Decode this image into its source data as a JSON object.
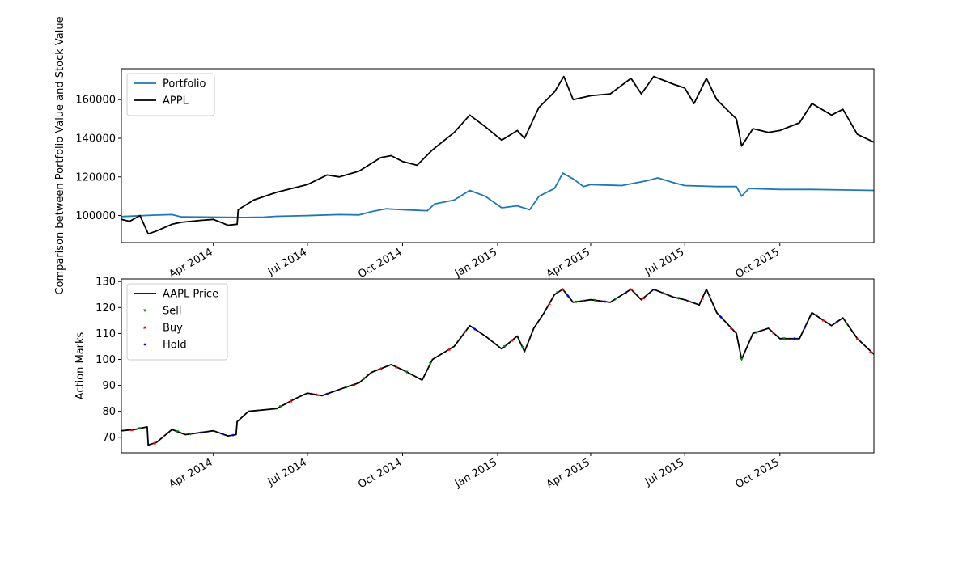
{
  "chart_data": [
    {
      "type": "line",
      "title": "",
      "xlabel": "",
      "ylabel": "Comparison between Portfolio Value and Stock Value",
      "x_range": [
        "2014-01-02",
        "2015-12-31"
      ],
      "ylim": [
        86000,
        176000
      ],
      "y_ticks": [
        100000,
        120000,
        140000,
        160000
      ],
      "x_ticks": [
        {
          "date": "2014-04-01",
          "label": "Apr 2014"
        },
        {
          "date": "2014-07-01",
          "label": "Jul 2014"
        },
        {
          "date": "2014-10-01",
          "label": "Oct 2014"
        },
        {
          "date": "2015-01-01",
          "label": "Jan 2015"
        },
        {
          "date": "2015-04-01",
          "label": "Apr 2015"
        },
        {
          "date": "2015-07-01",
          "label": "Jul 2015"
        },
        {
          "date": "2015-10-01",
          "label": "Oct 2015"
        }
      ],
      "legend": "upper-left",
      "grid": false,
      "series": [
        {
          "name": "Portfolio",
          "color": "#1f77b4",
          "points": [
            [
              "2014-01-02",
              99500
            ],
            [
              "2014-02-01",
              100200
            ],
            [
              "2014-02-20",
              100500
            ],
            [
              "2014-03-01",
              99300
            ],
            [
              "2014-04-01",
              99200
            ],
            [
              "2014-05-01",
              99000
            ],
            [
              "2014-05-20",
              99200
            ],
            [
              "2014-06-01",
              99600
            ],
            [
              "2014-07-01",
              100000
            ],
            [
              "2014-08-01",
              100500
            ],
            [
              "2014-08-20",
              100300
            ],
            [
              "2014-09-01",
              102000
            ],
            [
              "2014-09-15",
              103500
            ],
            [
              "2014-10-01",
              103000
            ],
            [
              "2014-10-25",
              102500
            ],
            [
              "2014-11-01",
              106000
            ],
            [
              "2014-11-20",
              108000
            ],
            [
              "2014-12-05",
              113000
            ],
            [
              "2014-12-20",
              110000
            ],
            [
              "2015-01-05",
              104000
            ],
            [
              "2015-01-20",
              105000
            ],
            [
              "2015-02-01",
              103000
            ],
            [
              "2015-02-10",
              110000
            ],
            [
              "2015-02-25",
              114000
            ],
            [
              "2015-03-05",
              122000
            ],
            [
              "2015-03-15",
              119000
            ],
            [
              "2015-03-25",
              115000
            ],
            [
              "2015-04-01",
              116000
            ],
            [
              "2015-05-01",
              115500
            ],
            [
              "2015-05-25",
              118000
            ],
            [
              "2015-06-05",
              119500
            ],
            [
              "2015-06-20",
              117000
            ],
            [
              "2015-07-01",
              115500
            ],
            [
              "2015-08-01",
              115000
            ],
            [
              "2015-08-20",
              115000
            ],
            [
              "2015-08-25",
              110000
            ],
            [
              "2015-09-01",
              114000
            ],
            [
              "2015-10-01",
              113500
            ],
            [
              "2015-11-01",
              113500
            ],
            [
              "2015-12-31",
              113000
            ]
          ]
        },
        {
          "name": "APPL",
          "color": "#000000",
          "points": [
            [
              "2014-01-02",
              98000
            ],
            [
              "2014-01-10",
              97000
            ],
            [
              "2014-01-20",
              100000
            ],
            [
              "2014-01-28",
              90500
            ],
            [
              "2014-02-05",
              92000
            ],
            [
              "2014-02-20",
              95500
            ],
            [
              "2014-03-01",
              96500
            ],
            [
              "2014-03-20",
              97500
            ],
            [
              "2014-04-01",
              98000
            ],
            [
              "2014-04-15",
              95000
            ],
            [
              "2014-04-24",
              95500
            ],
            [
              "2014-04-25",
              103000
            ],
            [
              "2014-05-10",
              108000
            ],
            [
              "2014-06-01",
              112000
            ],
            [
              "2014-07-01",
              116000
            ],
            [
              "2014-07-20",
              121000
            ],
            [
              "2014-08-01",
              120000
            ],
            [
              "2014-08-20",
              123000
            ],
            [
              "2014-09-10",
              130000
            ],
            [
              "2014-09-20",
              131000
            ],
            [
              "2014-10-01",
              128000
            ],
            [
              "2014-10-15",
              126000
            ],
            [
              "2014-10-30",
              134000
            ],
            [
              "2014-11-20",
              143000
            ],
            [
              "2014-12-05",
              152000
            ],
            [
              "2014-12-20",
              146000
            ],
            [
              "2015-01-05",
              139000
            ],
            [
              "2015-01-20",
              144000
            ],
            [
              "2015-01-27",
              140000
            ],
            [
              "2015-02-10",
              156000
            ],
            [
              "2015-02-25",
              164000
            ],
            [
              "2015-03-06",
              172000
            ],
            [
              "2015-03-15",
              160000
            ],
            [
              "2015-04-01",
              162000
            ],
            [
              "2015-04-20",
              163000
            ],
            [
              "2015-05-10",
              171000
            ],
            [
              "2015-05-20",
              163000
            ],
            [
              "2015-06-01",
              172000
            ],
            [
              "2015-06-20",
              168000
            ],
            [
              "2015-07-01",
              166000
            ],
            [
              "2015-07-10",
              158000
            ],
            [
              "2015-07-22",
              171000
            ],
            [
              "2015-08-01",
              160000
            ],
            [
              "2015-08-20",
              150000
            ],
            [
              "2015-08-25",
              136000
            ],
            [
              "2015-09-05",
              145000
            ],
            [
              "2015-09-20",
              143000
            ],
            [
              "2015-10-01",
              144000
            ],
            [
              "2015-10-20",
              148000
            ],
            [
              "2015-11-01",
              158000
            ],
            [
              "2015-11-20",
              152000
            ],
            [
              "2015-12-01",
              155000
            ],
            [
              "2015-12-15",
              142000
            ],
            [
              "2015-12-31",
              138000
            ]
          ]
        }
      ]
    },
    {
      "type": "line",
      "title": "",
      "xlabel": "",
      "ylabel": "Action Marks",
      "x_range": [
        "2014-01-02",
        "2015-12-31"
      ],
      "ylim": [
        64,
        131
      ],
      "y_ticks": [
        70,
        80,
        90,
        100,
        110,
        120,
        130
      ],
      "x_ticks": [
        {
          "date": "2014-04-01",
          "label": "Apr 2014"
        },
        {
          "date": "2014-07-01",
          "label": "Jul 2014"
        },
        {
          "date": "2014-10-01",
          "label": "Oct 2014"
        },
        {
          "date": "2015-01-01",
          "label": "Jan 2015"
        },
        {
          "date": "2015-04-01",
          "label": "Apr 2015"
        },
        {
          "date": "2015-07-01",
          "label": "Jul 2015"
        },
        {
          "date": "2015-10-01",
          "label": "Oct 2015"
        }
      ],
      "legend": "upper-left",
      "grid": false,
      "series": [
        {
          "name": "AAPL Price",
          "color": "#000000",
          "points": [
            [
              "2014-01-02",
              72.5
            ],
            [
              "2014-01-15",
              73
            ],
            [
              "2014-01-27",
              74
            ],
            [
              "2014-01-28",
              67
            ],
            [
              "2014-02-05",
              68
            ],
            [
              "2014-02-20",
              73
            ],
            [
              "2014-03-05",
              71
            ],
            [
              "2014-04-01",
              72.5
            ],
            [
              "2014-04-15",
              70.5
            ],
            [
              "2014-04-23",
              71
            ],
            [
              "2014-04-24",
              76
            ],
            [
              "2014-05-05",
              80
            ],
            [
              "2014-06-01",
              81
            ],
            [
              "2014-06-20",
              85
            ],
            [
              "2014-07-01",
              87
            ],
            [
              "2014-07-15",
              86
            ],
            [
              "2014-08-05",
              89
            ],
            [
              "2014-08-20",
              91
            ],
            [
              "2014-09-01",
              95
            ],
            [
              "2014-09-20",
              98
            ],
            [
              "2014-10-01",
              96
            ],
            [
              "2014-10-20",
              92
            ],
            [
              "2014-10-30",
              100
            ],
            [
              "2014-11-20",
              105
            ],
            [
              "2014-12-05",
              113
            ],
            [
              "2014-12-20",
              109
            ],
            [
              "2015-01-05",
              104
            ],
            [
              "2015-01-20",
              109
            ],
            [
              "2015-01-27",
              103
            ],
            [
              "2015-02-05",
              112
            ],
            [
              "2015-02-15",
              118
            ],
            [
              "2015-02-25",
              125
            ],
            [
              "2015-03-05",
              127
            ],
            [
              "2015-03-15",
              122
            ],
            [
              "2015-04-01",
              123
            ],
            [
              "2015-04-20",
              122
            ],
            [
              "2015-05-10",
              127
            ],
            [
              "2015-05-20",
              123
            ],
            [
              "2015-06-01",
              127
            ],
            [
              "2015-06-20",
              124
            ],
            [
              "2015-07-01",
              123
            ],
            [
              "2015-07-15",
              121
            ],
            [
              "2015-07-22",
              127
            ],
            [
              "2015-08-01",
              118
            ],
            [
              "2015-08-20",
              110
            ],
            [
              "2015-08-25",
              100
            ],
            [
              "2015-09-05",
              110
            ],
            [
              "2015-09-20",
              112
            ],
            [
              "2015-10-01",
              108
            ],
            [
              "2015-10-20",
              108
            ],
            [
              "2015-11-01",
              118
            ],
            [
              "2015-11-20",
              113
            ],
            [
              "2015-12-01",
              116
            ],
            [
              "2015-12-15",
              108
            ],
            [
              "2015-12-31",
              102
            ]
          ]
        },
        {
          "name": "Sell",
          "color": "#008000",
          "marker": "triangle-down",
          "dates": [
            "2014-01-20",
            "2014-02-25",
            "2014-03-10",
            "2014-06-05",
            "2014-08-08",
            "2014-08-25",
            "2014-10-05",
            "2014-10-28",
            "2015-01-08",
            "2015-01-25",
            "2015-02-28",
            "2015-03-18",
            "2015-04-05",
            "2015-04-25",
            "2015-06-25",
            "2015-07-25",
            "2015-08-25",
            "2015-09-08",
            "2015-10-05",
            "2015-11-05",
            "2015-12-05"
          ]
        },
        {
          "name": "Buy",
          "color": "#ff0000",
          "marker": "triangle-up",
          "dates": [
            "2014-01-12",
            "2014-02-03",
            "2014-02-12",
            "2014-06-15",
            "2014-07-10",
            "2014-08-15",
            "2014-09-10",
            "2014-09-25",
            "2014-11-15",
            "2014-12-01",
            "2015-01-15",
            "2015-02-20",
            "2015-03-05",
            "2015-03-25",
            "2015-05-10",
            "2015-05-22",
            "2015-06-10",
            "2015-07-05",
            "2015-07-18",
            "2015-08-15",
            "2015-09-25",
            "2015-11-12",
            "2015-12-15",
            "2015-12-28"
          ]
        },
        {
          "name": "Hold",
          "color": "#0000ff",
          "marker": "dot",
          "dates": [
            "2014-03-20",
            "2014-04-10",
            "2014-04-20",
            "2014-07-05",
            "2014-07-20",
            "2014-12-10",
            "2015-03-10",
            "2015-04-15",
            "2015-05-05",
            "2015-06-02",
            "2015-08-05",
            "2015-10-15",
            "2015-10-25",
            "2015-11-25"
          ]
        }
      ]
    }
  ]
}
